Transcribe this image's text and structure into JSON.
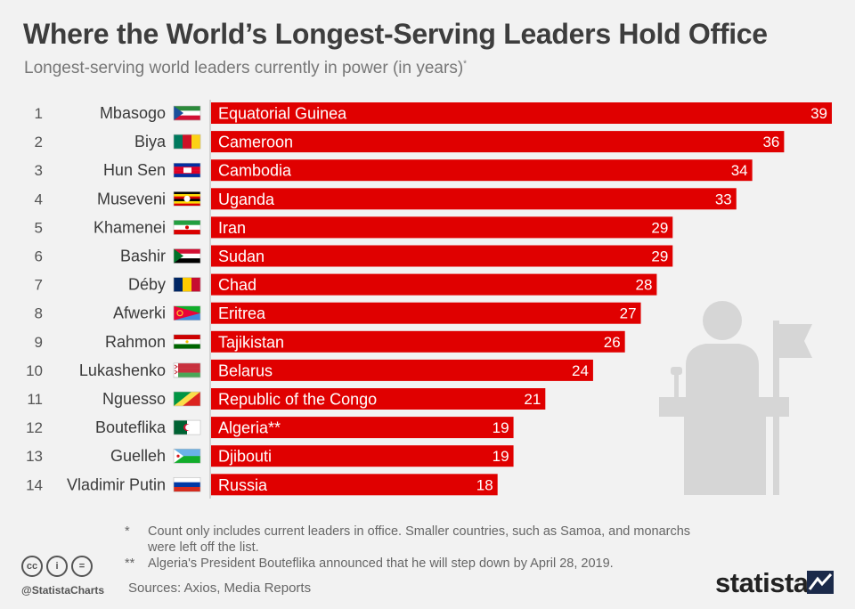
{
  "header": {
    "title": "Where the World’s Longest-Serving Leaders Hold Office",
    "subtitle": "Longest-serving world leaders currently in power (in years)",
    "subtitle_mark": "*"
  },
  "chart_data": {
    "type": "bar",
    "orientation": "horizontal",
    "ranks": [
      "1",
      "2",
      "3",
      "4",
      "5",
      "6",
      "7",
      "8",
      "9",
      "10",
      "11",
      "12",
      "13",
      "14"
    ],
    "leaders": [
      "Mbasogo",
      "Biya",
      "Hun Sen",
      "Museveni",
      "Khamenei",
      "Bashir",
      "Déby",
      "Afwerki",
      "Rahmon",
      "Lukashenko",
      "Nguesso",
      "Bouteflika",
      "Guelleh",
      "Vladimir Putin"
    ],
    "categories": [
      "Equatorial Guinea",
      "Cameroon",
      "Cambodia",
      "Uganda",
      "Iran",
      "Sudan",
      "Chad",
      "Eritrea",
      "Tajikistan",
      "Belarus",
      "Republic of the Congo",
      "Algeria**",
      "Djibouti",
      "Russia"
    ],
    "values": [
      39,
      36,
      34,
      33,
      29,
      29,
      28,
      27,
      26,
      24,
      21,
      19,
      19,
      18
    ],
    "flags": [
      "flag-equatorial-guinea",
      "flag-cameroon",
      "flag-cambodia",
      "flag-uganda",
      "flag-iran",
      "flag-sudan",
      "flag-chad",
      "flag-eritrea",
      "flag-tajikistan",
      "flag-belarus",
      "flag-congo",
      "flag-algeria",
      "flag-djibouti",
      "flag-russia"
    ],
    "bar_color": "#e00000",
    "xlim": [
      0,
      39
    ]
  },
  "illustration": "podium-speaker-icon",
  "footnotes": {
    "note1_mark": "*",
    "note1": "Count only includes current leaders in office. Smaller countries, such as Samoa, and monarchs were left off the list.",
    "note2_mark": "**",
    "note2": "Algeria's President Bouteflika announced that he will step down by April 28, 2019.",
    "sources": "Sources: Axios, Media Reports"
  },
  "footer": {
    "license_icons": [
      "cc-icon",
      "by-icon",
      "nd-icon"
    ],
    "license_glyphs": [
      "cc",
      "i",
      "="
    ],
    "handle": "@StatistaCharts",
    "brand": "statista"
  }
}
